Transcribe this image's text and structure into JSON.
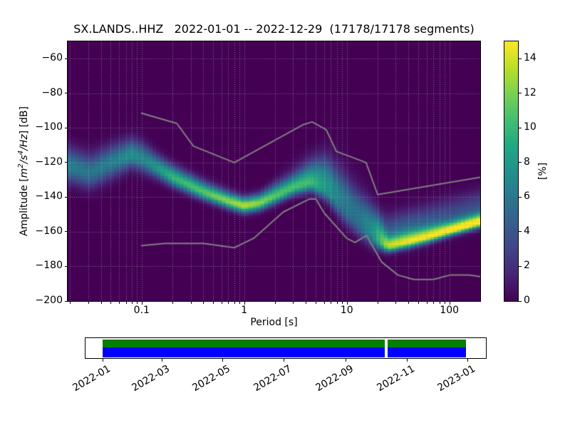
{
  "title": "SX.LANDS..HHZ   2022-01-01 -- 2022-12-29  (17178/17178 segments)",
  "axes": {
    "xlabel": "Period [s]",
    "ylabel": {
      "p1": "Amplitude [",
      "m1": "m",
      "s1": "2",
      "m2": "/s",
      "s2": "4",
      "m3": "/Hz",
      "p2": "] [dB]"
    },
    "ylabel_plain": "Amplitude [m2/s4/Hz] [dB]",
    "x_tick_values": [
      0.1,
      1,
      10,
      100
    ],
    "x_tick_labels": [
      "0.1",
      "1",
      "10",
      "100"
    ],
    "x_minor_mantissas": [
      2,
      3,
      4,
      5,
      6,
      7,
      8,
      9
    ],
    "y_tick_values": [
      -60,
      -80,
      -100,
      -120,
      -140,
      -160,
      -180,
      -200
    ]
  },
  "colorbar": {
    "label": "[%]",
    "tick_values": [
      0,
      2,
      4,
      6,
      8,
      10,
      12,
      14
    ],
    "vmin": 0,
    "vmax": 15
  },
  "chart_data": {
    "type": "heatmap",
    "title": "SX.LANDS..HHZ   2022-01-01 -- 2022-12-29  (17178/17178 segments)",
    "xlabel": "Period [s]",
    "ylabel": "Amplitude [m2/s4/Hz] [dB]",
    "x_scale": "log",
    "xlim": [
      0.019,
      200
    ],
    "ylim": [
      -200,
      -50
    ],
    "zlabel": "[%]",
    "zlim": [
      0,
      15
    ],
    "grid": {
      "style": "dotted",
      "color_rgba": "rgba(200,200,205,0.5)",
      "x_major": true,
      "x_minor": true,
      "y_major": true
    },
    "background_value": 0,
    "colormap": "viridis",
    "colormap_stops": [
      "#440154",
      "#482475",
      "#414487",
      "#355f8d",
      "#2a788e",
      "#21918c",
      "#22a884",
      "#44bf70",
      "#7ad151",
      "#bddf26",
      "#fde725"
    ],
    "bins": {
      "columns": 107,
      "db_bin_width": 1
    },
    "pdf_model": {
      "comment": "probability density ridge of the PPSD: mode line, peak density (%), asymmetric spread (dB), plus diffuse halo above the ridge",
      "log10_period": [
        -1.72,
        -1.5,
        -1.3,
        -1.1,
        -1.0,
        -0.85,
        -0.7,
        -0.4,
        -0.15,
        0.0,
        0.15,
        0.3,
        0.48,
        0.65,
        0.8,
        0.95,
        1.1,
        1.25,
        1.4,
        1.6,
        1.8,
        2.0,
        2.15,
        2.3
      ],
      "mode_db": [
        -122,
        -126,
        -120,
        -115.5,
        -117.5,
        -123,
        -128.5,
        -137,
        -142.5,
        -145,
        -143.5,
        -139.5,
        -134.5,
        -131.5,
        -136,
        -146,
        -155,
        -163,
        -168.5,
        -166,
        -163,
        -159.5,
        -157,
        -154.5
      ],
      "peak_percent": [
        6.5,
        6.0,
        6.5,
        7.5,
        7.0,
        8.0,
        10.0,
        11.0,
        12.5,
        13.5,
        12.5,
        11.0,
        10.5,
        10.0,
        7.0,
        5.0,
        4.5,
        6.0,
        12.0,
        13.0,
        13.5,
        14.5,
        15.0,
        15.0
      ],
      "sigma_down_db": [
        6,
        6,
        6,
        5,
        5,
        4,
        3.5,
        3,
        2.8,
        2.8,
        2.8,
        3,
        3,
        3.5,
        4,
        5,
        5,
        4,
        2.2,
        2.2,
        2.2,
        2,
        2,
        2
      ],
      "sigma_up_db": [
        7,
        7,
        6.5,
        6,
        6,
        5,
        4.5,
        4,
        3.5,
        3.2,
        3.5,
        4.5,
        5,
        7,
        12,
        14,
        13,
        11,
        4,
        4,
        4,
        3.5,
        3.5,
        3.5
      ],
      "halo_percent": [
        0,
        0,
        0,
        0,
        0,
        0,
        0,
        0,
        0,
        0,
        0,
        0,
        0.5,
        1,
        2,
        2,
        2,
        2.5,
        4,
        4.5,
        4,
        3.5,
        3.5,
        3.5
      ],
      "halo_offset_db": 9,
      "halo_sigma_db": 6.5
    },
    "noise_models": {
      "color": "#7f7f7f",
      "line_width": 2,
      "nhnm": [
        [
          0.1,
          -91.5
        ],
        [
          0.22,
          -97.4
        ],
        [
          0.32,
          -110.5
        ],
        [
          0.8,
          -120.0
        ],
        [
          3.8,
          -98.0
        ],
        [
          4.6,
          -96.5
        ],
        [
          6.3,
          -101.0
        ],
        [
          7.9,
          -113.5
        ],
        [
          15.4,
          -120.0
        ],
        [
          20.0,
          -138.5
        ],
        [
          354.8,
          -126.0
        ]
      ],
      "nlnm": [
        [
          0.1,
          -168.0
        ],
        [
          0.17,
          -166.7
        ],
        [
          0.4,
          -166.7
        ],
        [
          0.8,
          -169.2
        ],
        [
          1.24,
          -163.7
        ],
        [
          2.4,
          -148.6
        ],
        [
          4.3,
          -141.1
        ],
        [
          5.0,
          -141.1
        ],
        [
          6.0,
          -149.0
        ],
        [
          10.0,
          -163.8
        ],
        [
          12.0,
          -166.2
        ],
        [
          15.6,
          -162.1
        ],
        [
          21.9,
          -177.5
        ],
        [
          31.6,
          -185.0
        ],
        [
          45.0,
          -187.5
        ],
        [
          70.0,
          -187.5
        ],
        [
          101.0,
          -185.0
        ],
        [
          154.0,
          -185.0
        ],
        [
          328.0,
          -187.5
        ]
      ]
    }
  },
  "timeline": {
    "tick_labels": [
      "2022-01",
      "2022-03",
      "2022-05",
      "2022-07",
      "2022-09",
      "2022-11",
      "2023-01"
    ],
    "tick_days": [
      0,
      59,
      120,
      181,
      243,
      304,
      365
    ],
    "coverage": {
      "start": "2022-01-01",
      "end": "2022-12-29",
      "start_day": 0,
      "end_day": 363.5
    },
    "gap": {
      "start_day": 282.5,
      "end_day": 285
    },
    "bar_colors": {
      "top": "#007f00",
      "bottom": "#0000ff"
    },
    "background": "#ffffff"
  }
}
